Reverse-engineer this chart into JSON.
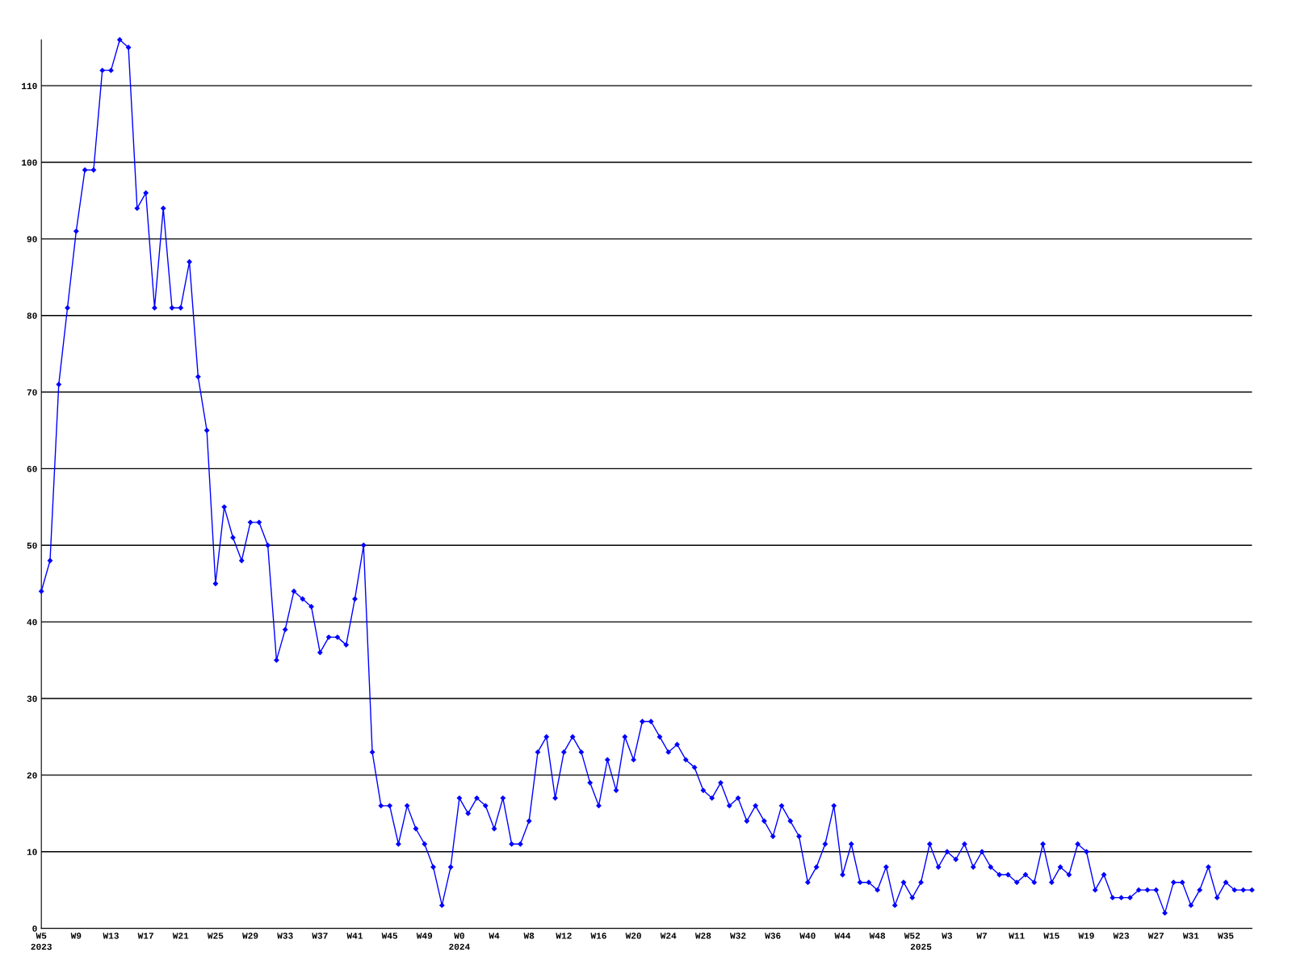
{
  "chart_data": {
    "type": "line",
    "categories": [
      "W5\n2023",
      null,
      null,
      null,
      "W9",
      null,
      null,
      null,
      "W13",
      null,
      null,
      null,
      "W17",
      null,
      null,
      null,
      "W21",
      null,
      null,
      null,
      "W25",
      null,
      null,
      null,
      "W29",
      null,
      null,
      null,
      "W33",
      null,
      null,
      null,
      "W37",
      null,
      null,
      null,
      "W41",
      null,
      null,
      null,
      "W45",
      null,
      null,
      null,
      "W49",
      null,
      null,
      null,
      "W0\n2024",
      null,
      null,
      null,
      "W4",
      null,
      null,
      null,
      "W8",
      null,
      null,
      null,
      "W12",
      null,
      null,
      null,
      "W16",
      null,
      null,
      null,
      "W20",
      null,
      null,
      null,
      "W24",
      null,
      null,
      null,
      "W28",
      null,
      null,
      null,
      "W32",
      null,
      null,
      null,
      "W36",
      null,
      null,
      null,
      "W40",
      null,
      null,
      null,
      "W44",
      null,
      null,
      null,
      "W48",
      null,
      null,
      null,
      "W52",
      "\n2025",
      null,
      null,
      "W3",
      null,
      null,
      null,
      "W7",
      null,
      null,
      null,
      "W11",
      null,
      null,
      null,
      "W15",
      null,
      null,
      null,
      "W19",
      null,
      null,
      null,
      "W23",
      null,
      null,
      null,
      "W27",
      null,
      null,
      null,
      "W31",
      null,
      null,
      null,
      "W35",
      null,
      null,
      null
    ],
    "series": [
      {
        "color": "#0000ff",
        "values": [
          44,
          48,
          71,
          81,
          91,
          99,
          99,
          112,
          112,
          116,
          115,
          94,
          96,
          81,
          94,
          81,
          81,
          87,
          72,
          65,
          45,
          55,
          51,
          48,
          53,
          53,
          50,
          35,
          39,
          44,
          43,
          42,
          36,
          38,
          38,
          37,
          43,
          50,
          23,
          16,
          16,
          11,
          16,
          13,
          11,
          8,
          3,
          8,
          17,
          15,
          17,
          16,
          13,
          17,
          11,
          11,
          14,
          23,
          25,
          17,
          23,
          25,
          23,
          19,
          16,
          22,
          18,
          25,
          22,
          27,
          27,
          25,
          23,
          24,
          22,
          21,
          18,
          17,
          19,
          16,
          17,
          14,
          16,
          14,
          12,
          16,
          14,
          12,
          6,
          8,
          11,
          16,
          7,
          11,
          6,
          6,
          5,
          8,
          3,
          6,
          4,
          6,
          11,
          8,
          10,
          9,
          11,
          8,
          10,
          8,
          7,
          7,
          6,
          7,
          6,
          11,
          6,
          8,
          7,
          11,
          10,
          5,
          7,
          4,
          4,
          4,
          5,
          5,
          5,
          2,
          6,
          6,
          3,
          5,
          8,
          4,
          6,
          5,
          5,
          5
        ]
      }
    ],
    "ylim": [
      0,
      116
    ],
    "yticks": [
      0,
      10,
      20,
      30,
      40,
      50,
      60,
      70,
      80,
      90,
      100,
      110
    ],
    "grid": "y",
    "marker": "diamond",
    "line_style": "solid"
  }
}
